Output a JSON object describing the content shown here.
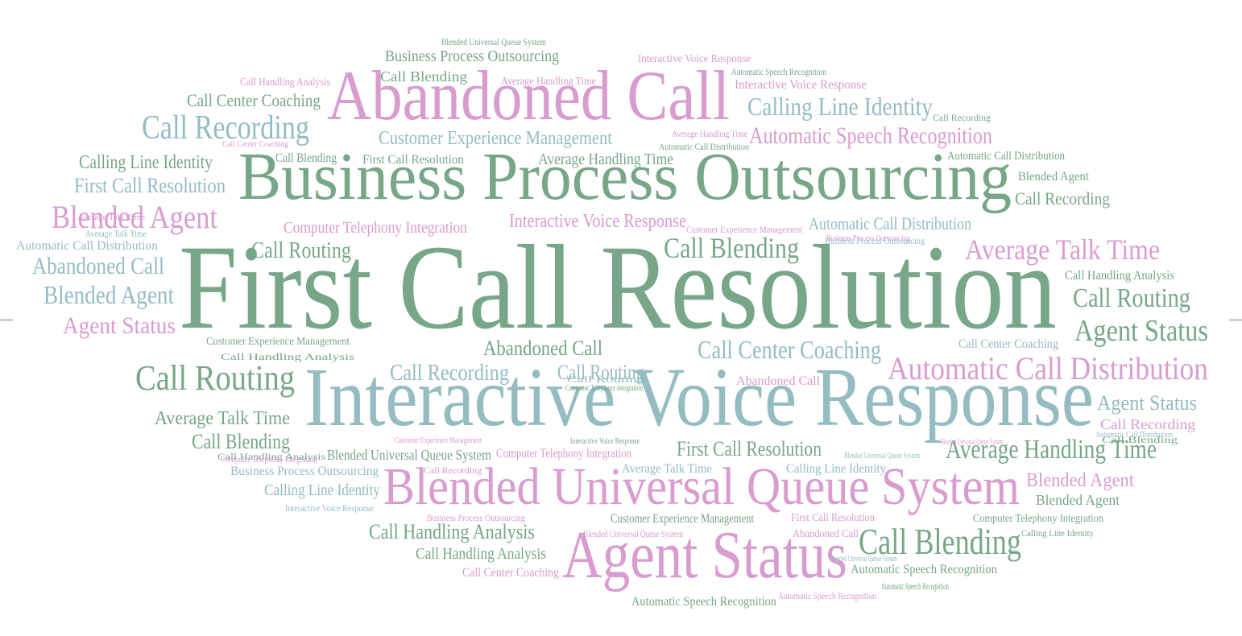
{
  "colors": {
    "green": "#77a688",
    "teal": "#94bcc1",
    "pink": "#d99ccf"
  },
  "words": [
    {
      "text": "First Call Resolution",
      "color": "green"
    },
    {
      "text": "Business Process Outsourcing",
      "color": "green"
    },
    {
      "text": "Interactive Voice Response",
      "color": "teal"
    },
    {
      "text": "Abandoned Call",
      "color": "pink"
    },
    {
      "text": "Blended Universal Queue System",
      "color": "pink"
    },
    {
      "text": "Agent Status",
      "color": "pink"
    },
    {
      "text": "Automatic Call Distribution",
      "color": "pink"
    },
    {
      "text": "Call Recording",
      "color": "teal"
    },
    {
      "text": "Call Routing",
      "color": "green"
    },
    {
      "text": "Call Blending",
      "color": "green"
    },
    {
      "text": "Average Handling Time",
      "color": "green"
    },
    {
      "text": "Calling Line Identity",
      "color": "teal"
    },
    {
      "text": "Automatic Speech Recognition",
      "color": "pink"
    },
    {
      "text": "Average Talk Time",
      "color": "pink"
    },
    {
      "text": "Agent Status",
      "color": "green"
    },
    {
      "text": "Call Routing",
      "color": "green"
    },
    {
      "text": "Blended Agent",
      "color": "pink"
    },
    {
      "text": "Call Center Coaching",
      "color": "teal"
    },
    {
      "text": "Call Blending",
      "color": "green"
    },
    {
      "text": "Abandoned Call",
      "color": "teal"
    },
    {
      "text": "Blended Agent",
      "color": "teal"
    },
    {
      "text": "Agent Status",
      "color": "pink"
    },
    {
      "text": "Call Routing",
      "color": "green"
    },
    {
      "text": "Call Handling Analysis",
      "color": "green"
    },
    {
      "text": "First Call Resolution",
      "color": "teal"
    },
    {
      "text": "Calling Line Identity",
      "color": "green"
    },
    {
      "text": "Customer Experience Management",
      "color": "teal"
    },
    {
      "text": "Automatic Call Distribution",
      "color": "teal"
    },
    {
      "text": "Computer Telephony Integration",
      "color": "pink"
    },
    {
      "text": "Interactive Voice Response",
      "color": "pink"
    },
    {
      "text": "Abandoned Call",
      "color": "green"
    },
    {
      "text": "Call Recording",
      "color": "teal"
    },
    {
      "text": "Call Routing",
      "color": "teal"
    },
    {
      "text": "Average Talk Time",
      "color": "green"
    },
    {
      "text": "Call Blending",
      "color": "green"
    },
    {
      "text": "First Call Resolution",
      "color": "green"
    },
    {
      "text": "Agent Status",
      "color": "teal"
    },
    {
      "text": "Blended Agent",
      "color": "pink"
    },
    {
      "text": "Call Handling Analysis",
      "color": "green"
    },
    {
      "text": "Business Process Outsourcing",
      "color": "green"
    },
    {
      "text": "Call Center Coaching",
      "color": "green"
    },
    {
      "text": "Calling Line Identity",
      "color": "teal"
    },
    {
      "text": "Call Recording",
      "color": "green"
    },
    {
      "text": "Average Handling Time",
      "color": "green"
    },
    {
      "text": "Automatic Call Distribution",
      "color": "green"
    },
    {
      "text": "Interactive Voice Response",
      "color": "pink"
    },
    {
      "text": "Call Blending",
      "color": "green"
    },
    {
      "text": "Blended Agent",
      "color": "green"
    },
    {
      "text": "Automatic Speech Recognition",
      "color": "green"
    },
    {
      "text": "Customer Experience Management",
      "color": "green"
    },
    {
      "text": "Blended Universal Queue System",
      "color": "green"
    },
    {
      "text": "Computer Telephony Integration",
      "color": "pink"
    },
    {
      "text": "Call Handling Analysis",
      "color": "green"
    },
    {
      "text": "Call Center Coaching",
      "color": "pink"
    },
    {
      "text": "Automatic Speech Recognition",
      "color": "green"
    },
    {
      "text": "Calling Line Identity",
      "color": "teal"
    },
    {
      "text": "Average Talk Time",
      "color": "teal"
    },
    {
      "text": "Business Process Outsourcing",
      "color": "teal"
    },
    {
      "text": "First Call Resolution",
      "color": "green"
    },
    {
      "text": "Call Recording",
      "color": "pink"
    },
    {
      "text": "Abandoned Call",
      "color": "pink"
    },
    {
      "text": "Blended Agent",
      "color": "green"
    },
    {
      "text": "Interactive Voice Response",
      "color": "pink"
    },
    {
      "text": "Automatic Call Distribution",
      "color": "teal"
    },
    {
      "text": "Call Center Coaching",
      "color": "teal"
    },
    {
      "text": "Call Handling Analysis",
      "color": "green"
    },
    {
      "text": "Call Blending",
      "color": "green"
    },
    {
      "text": "Average Handling Time",
      "color": "pink"
    },
    {
      "text": "Call Handling Analysis",
      "color": "pink"
    },
    {
      "text": "Call Recording",
      "color": "green"
    },
    {
      "text": "Customer Experience Management",
      "color": "green"
    },
    {
      "text": "Computer Telephony Integration",
      "color": "pink"
    },
    {
      "text": "Computer Telephony Integration",
      "color": "green"
    },
    {
      "text": "Call Recording",
      "color": "pink"
    },
    {
      "text": "Automatic Speech Recognition",
      "color": "green"
    },
    {
      "text": "Business Process Outsourcing",
      "color": "pink"
    },
    {
      "text": "First Call Resolution",
      "color": "pink"
    },
    {
      "text": "Abandoned Call",
      "color": "pink"
    },
    {
      "text": "Customer Experience Management",
      "color": "pink"
    },
    {
      "text": "Call Blending",
      "color": "green"
    },
    {
      "text": "Blended Universal Queue System",
      "color": "pink"
    },
    {
      "text": "Call Handling Analysis",
      "color": "green"
    },
    {
      "text": "Average Talk Time",
      "color": "teal"
    },
    {
      "text": "Automatic Speech Recognition",
      "color": "pink"
    },
    {
      "text": "Interactive Voice Response",
      "color": "green"
    },
    {
      "text": "Business Process Outsourcing",
      "color": "teal"
    },
    {
      "text": "Blended Universal Queue System",
      "color": "green"
    },
    {
      "text": "Automatic Speech Recognition",
      "color": "green"
    },
    {
      "text": "Interactive Voice Response",
      "color": "teal"
    },
    {
      "text": "Blended Universal Queue System",
      "color": "teal"
    },
    {
      "text": "Calling Line Identity",
      "color": "green"
    },
    {
      "text": "Automatic Call Distribution",
      "color": "green"
    },
    {
      "text": "Average Handling Time",
      "color": "pink"
    },
    {
      "text": "Call Routing",
      "color": "teal"
    },
    {
      "text": "Customer Experience Management",
      "color": "pink"
    },
    {
      "text": "Blended Universal Queue System",
      "color": "pink"
    },
    {
      "text": "Average Talk Time",
      "color": "pink"
    },
    {
      "text": "Call Center Coaching",
      "color": "pink"
    },
    {
      "text": "Computer Telephony Integration",
      "color": "green"
    },
    {
      "text": "Business Process Outsourcing",
      "color": "pink"
    },
    {
      "text": "Automatic Call Distribution",
      "color": "teal"
    },
    {
      "text": "Blended Universal Queue System",
      "color": "teal"
    },
    {
      "text": "First Call Resolution",
      "color": "green"
    }
  ]
}
